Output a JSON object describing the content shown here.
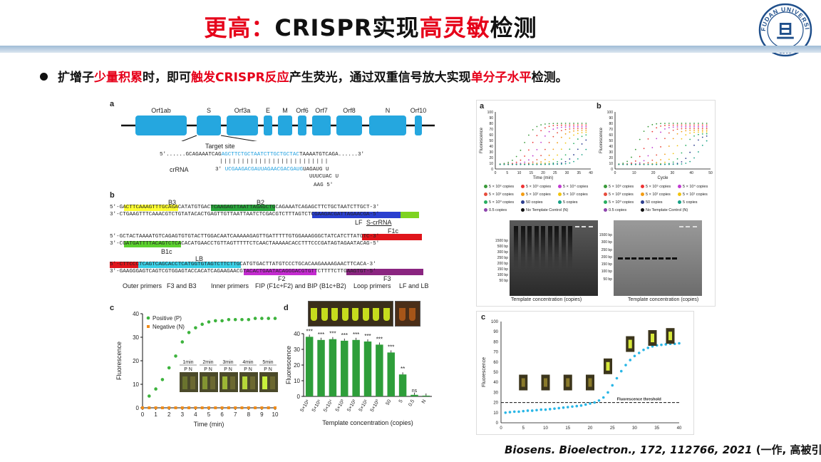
{
  "header": {
    "title_part1": "更高：",
    "title_part2": "CRISPR实现",
    "title_part3": "高灵敏",
    "title_part4": "检测"
  },
  "logo": {
    "text_top": "FUDAN UNIVERSITY",
    "year": "1905",
    "char": "旦"
  },
  "bullet": {
    "t1": "扩增子",
    "h1": "少量积累",
    "t2": "时，即可",
    "h2": "触发CRISPR反应",
    "t3": "产生荧光，通过双重信号放大实现",
    "h3": "单分子水平",
    "t4": "检测。"
  },
  "citation": {
    "journal": "Biosens. Bioelectron., 172, 112766, 2021",
    "note": " (一作, 高被引)"
  },
  "left_figure": {
    "panel_a": {
      "label": "a",
      "genes": [
        "Orf1ab",
        "S",
        "Orf3a",
        "E",
        "M",
        "Orf6",
        "Orf7",
        "Orf8",
        "N",
        "Orf10"
      ],
      "target_site": "Target site",
      "seq_prefix": "5'......GCAGAAATCAG",
      "seq_target": "AGCTTCTGCTAATCTTGCTGCTAC",
      "seq_suffix": "TAAAATGTCAGA......3'",
      "crrna_label": "crRNA",
      "crrna_prefix": "3'",
      "crrna_seq": "UCGAAGACGAUUAGAACGACGAUG",
      "crrna_tail": "UAGAUG U",
      "loop1": "UUUCUAC U",
      "loop2": "AAG 5'"
    },
    "panel_b": {
      "label": "b",
      "tags": [
        "B3",
        "B2",
        "LF",
        "S-crRNA",
        "F1c",
        "B1c",
        "LB",
        "F2",
        "F3"
      ],
      "line1": "5'-GACTTCAAAGTTTGCAGACATATGTGACTCAAGAGTTAATTAGAGCTGCAGAAATCAGAGCTTCTGCTAATCTTGCT-3'",
      "line2": "3'-CTGAAGTTTCAAACGTCTGTATACACTGAGTTGTTAATTAATCTCGACGTCTTTAGTCTCGAAGACGATTAGAACGA-5'",
      "line3": "5'-GCTACTAAAATGTCAGAGTGTGTACTTGGACAATCAAAAAGAGTTGATTTTTGTGGAAAGGGCTATCATCTTATGTC-3'",
      "line4": "3'-CGATGATTTTACAGTCTCACACATGAACCTGTTAGTTTTTCTCAACTAAAAACACCTTTCCCGATAGTAGAATACAG-5'",
      "line5": "5'-CTTCCCTCAGTCAGCACCTCATGGTGTAGTCTTCTTGCATGTGACTTATGTCCCTGCACAAGAAAAGAACTTCACA-3'",
      "line6": "3'-GAAGGGAGTCAGTCGTGGAGTACCACATCAGAAGAACGTACACTGAATACAGGGACGTGTTCTTTTCTTGAAGTGT-5'",
      "legend": [
        "Outer primers",
        "F3 and B3",
        "Inner primers",
        "FIP (F1c+F2) and BIP (B1c+B2)",
        "Loop primers",
        "LF and LB"
      ]
    },
    "panel_c": {
      "label": "c",
      "ylabel": "Fluorescence",
      "xlabel": "Time (min)",
      "legend_pos": "Positive (P)",
      "legend_neg": "Negative (N)",
      "insets": [
        "1min",
        "2min",
        "3min",
        "4min",
        "5min"
      ],
      "inset_pn": "P N"
    },
    "panel_d": {
      "label": "d",
      "ylabel": "Fluorescence",
      "xlabel": "Template concentration (copies)",
      "ns_label": "ns"
    }
  },
  "right_top_figure": {
    "panel_a": {
      "label": "a",
      "ylabel": "Fluorescence",
      "xlabel": "Time (min)"
    },
    "panel_b": {
      "label": "b",
      "ylabel": "Fluorescence",
      "xlabel": "Cycle"
    },
    "legend_left": [
      "5 × 10⁶ copies",
      "5 × 10⁵ copies",
      "5 × 10⁴ copies",
      "5 × 10³ copies",
      "5 × 10² copies",
      "5 × 10¹ copies",
      "5 × 10⁰ copies",
      "50 copies",
      "5 copies",
      "0.5 copies",
      "No Template Control (N)"
    ],
    "legend_right": [
      "5 × 10⁶ copies",
      "5 × 10⁵ copies",
      "5 × 10⁴ copies",
      "5 × 10³ copies",
      "5 × 10² copies",
      "5 × 10¹ copies",
      "5 × 10⁰ copies",
      "50 copies",
      "5 copies",
      "0.5 copies",
      "No Template Control (N)"
    ],
    "gel_left_ladder": [
      "1500 bp",
      "500 bp",
      "300 bp",
      "250 bp",
      "200 bp",
      "150 bp",
      "100 bp",
      "50 bp"
    ],
    "gel_right_ladder": [
      "1500 bp",
      "300 bp",
      "250 bp",
      "200 bp",
      "150 bp",
      "100 bp",
      "50 bp"
    ],
    "gel_caption": "Template concentration (copies)"
  },
  "right_bottom_figure": {
    "label": "c",
    "ylabel": "Fluorescence",
    "threshold_label": "Fluorescence threshold"
  },
  "chart_data": [
    {
      "type": "scatter",
      "title": "",
      "xlabel": "Time (min)",
      "ylabel": "Fluorescence",
      "xlim": [
        0,
        10
      ],
      "ylim": [
        0,
        40
      ],
      "series": [
        {
          "name": "Positive (P)",
          "x": [
            0.5,
            1,
            1.5,
            2,
            2.5,
            3,
            3.5,
            4,
            4.5,
            5,
            5.5,
            6,
            6.5,
            7,
            7.5,
            8,
            8.5,
            9,
            9.5,
            10
          ],
          "y": [
            5,
            8,
            12,
            17,
            22,
            28,
            32,
            34,
            35.5,
            36.5,
            37,
            37,
            37.5,
            37.5,
            37.5,
            37.5,
            38,
            38,
            38,
            38
          ]
        },
        {
          "name": "Negative (N)",
          "x": [
            0,
            0.5,
            1,
            1.5,
            2,
            2.5,
            3,
            3.5,
            4,
            4.5,
            5,
            5.5,
            6,
            6.5,
            7,
            7.5,
            8,
            8.5,
            9,
            9.5,
            10
          ],
          "y": [
            0,
            0,
            0,
            0,
            0,
            0,
            0,
            0,
            0,
            0,
            0,
            0,
            0,
            0,
            0,
            0,
            0,
            0,
            0,
            0,
            0
          ]
        }
      ],
      "xticks": [
        0,
        1,
        2,
        3,
        4,
        5,
        6,
        7,
        8,
        9,
        10
      ],
      "yticks": [
        0,
        10,
        20,
        30,
        40
      ],
      "legend": "top-left"
    },
    {
      "type": "bar",
      "title": "",
      "xlabel": "Template concentration (copies)",
      "ylabel": "Fluorescence",
      "categories": [
        "5×10⁶",
        "5×10⁵",
        "5×10⁴",
        "5×10³",
        "5×10²",
        "5×10¹",
        "5×10⁰",
        "50",
        "5",
        "0.5",
        "N"
      ],
      "values": [
        38,
        36,
        36.5,
        35.5,
        36,
        35,
        33,
        28,
        14,
        1,
        0.5
      ],
      "significance": [
        "***",
        "***",
        "***",
        "***",
        "***",
        "***",
        "***",
        "***",
        "**",
        "",
        ""
      ],
      "ylim": [
        0,
        40
      ],
      "yticks": [
        0,
        10,
        20,
        30,
        40
      ],
      "color": "#2e9e3a"
    },
    {
      "type": "scatter",
      "title": "",
      "xlabel": "",
      "ylabel": "Fluorescence",
      "xlim": [
        0,
        40
      ],
      "ylim": [
        0,
        100
      ],
      "threshold": 20,
      "xticks": [
        0,
        5,
        10,
        15,
        20,
        25,
        30,
        35,
        40
      ],
      "yticks": [
        0,
        10,
        20,
        30,
        40,
        50,
        60,
        70,
        80,
        90,
        100
      ],
      "series": [
        {
          "name": "",
          "x": [
            1,
            2,
            3,
            4,
            5,
            6,
            7,
            8,
            9,
            10,
            11,
            12,
            13,
            14,
            15,
            16,
            17,
            18,
            19,
            20,
            21,
            22,
            23,
            24,
            25,
            26,
            27,
            28,
            29,
            30,
            31,
            32,
            33,
            34,
            35,
            36,
            37,
            38,
            39,
            40
          ],
          "y": [
            10,
            10.5,
            11,
            11,
            11.5,
            12,
            12,
            12.5,
            13,
            13,
            13.5,
            14,
            14.5,
            15,
            15.5,
            16,
            16.5,
            17,
            18,
            19,
            20,
            22,
            25,
            30,
            37,
            44,
            51,
            57,
            62,
            66,
            69,
            72,
            74,
            75.5,
            76.5,
            77,
            77.5,
            78,
            78,
            78.5
          ]
        }
      ]
    }
  ]
}
